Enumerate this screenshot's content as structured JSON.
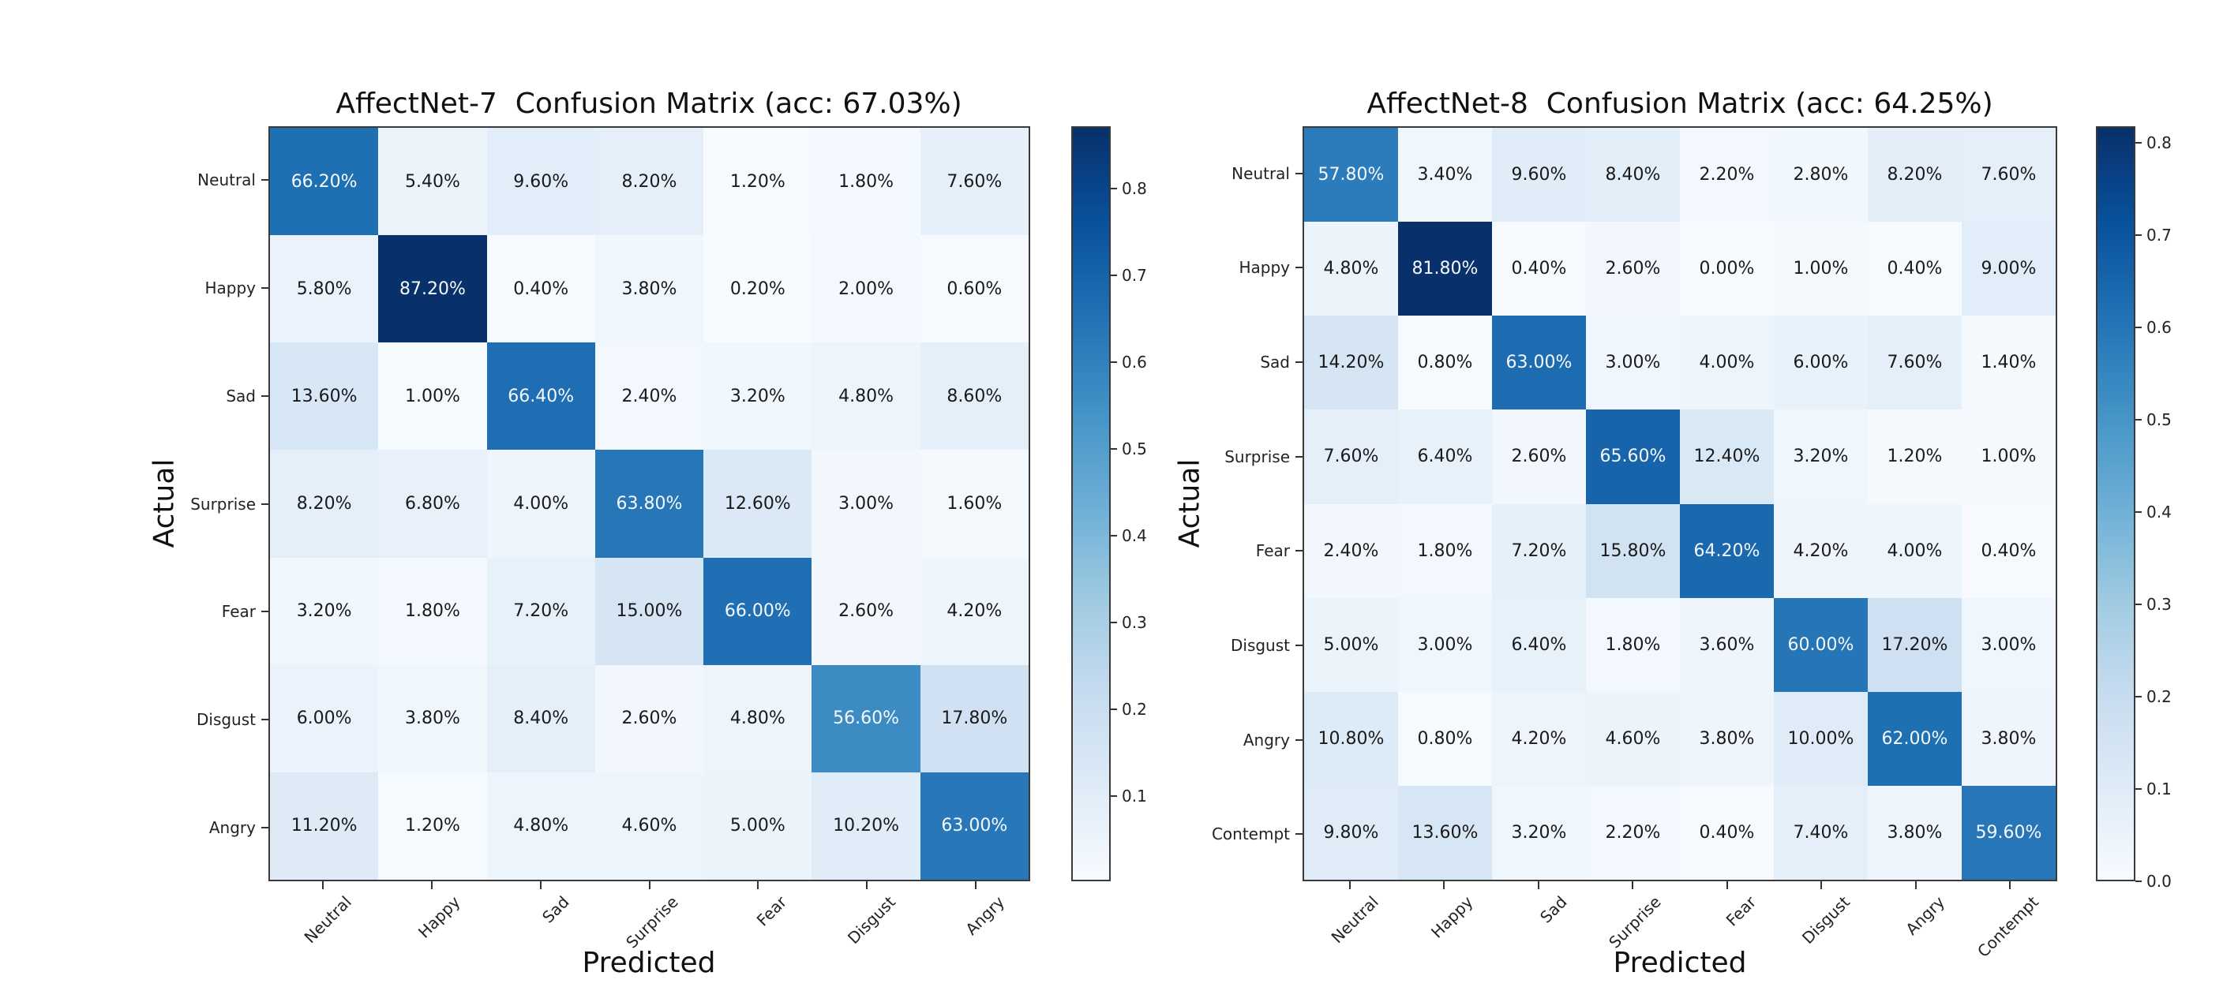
{
  "colors": {
    "background": "#ffffff",
    "text": "#111111",
    "spine": "#3a3a3a",
    "colormap": "Blues",
    "colormap_stops": [
      "#f7fbff",
      "#deebf7",
      "#c6dbef",
      "#9ecae1",
      "#6baed6",
      "#4292c6",
      "#2171b5",
      "#08519c",
      "#08306b"
    ],
    "cell_text_dark": "#1a1a1a",
    "cell_text_light": "#f5f9fd"
  },
  "chart_data": [
    {
      "type": "heatmap",
      "title": "AffectNet-7  Confusion Matrix (acc: 67.03%)",
      "accuracy_percent": 67.03,
      "xlabel": "Predicted",
      "ylabel": "Actual",
      "classes": [
        "Neutral",
        "Happy",
        "Sad",
        "Surprise",
        "Fear",
        "Disgust",
        "Angry"
      ],
      "values_percent": [
        [
          66.2,
          5.4,
          9.6,
          8.2,
          1.2,
          1.8,
          7.6
        ],
        [
          5.8,
          87.2,
          0.4,
          3.8,
          0.2,
          2.0,
          0.6
        ],
        [
          13.6,
          1.0,
          66.4,
          2.4,
          3.2,
          4.8,
          8.6
        ],
        [
          8.2,
          6.8,
          4.0,
          63.8,
          12.6,
          3.0,
          1.6
        ],
        [
          3.2,
          1.8,
          7.2,
          15.0,
          66.0,
          2.6,
          4.2
        ],
        [
          6.0,
          3.8,
          8.4,
          2.6,
          4.8,
          56.6,
          17.8
        ],
        [
          11.2,
          1.2,
          4.8,
          4.6,
          5.0,
          10.2,
          63.0
        ]
      ],
      "cell_suffix": "%",
      "colorbar_ticks": [
        0.1,
        0.2,
        0.3,
        0.4,
        0.5,
        0.6,
        0.7,
        0.8
      ],
      "legend_position": "right-colorbar",
      "grid": false
    },
    {
      "type": "heatmap",
      "title": "AffectNet-8  Confusion Matrix (acc: 64.25%)",
      "accuracy_percent": 64.25,
      "xlabel": "Predicted",
      "ylabel": "Actual",
      "classes": [
        "Neutral",
        "Happy",
        "Sad",
        "Surprise",
        "Fear",
        "Disgust",
        "Angry",
        "Contempt"
      ],
      "values_percent": [
        [
          57.8,
          3.4,
          9.6,
          8.4,
          2.2,
          2.8,
          8.2,
          7.6
        ],
        [
          4.8,
          81.8,
          0.4,
          2.6,
          0.0,
          1.0,
          0.4,
          9.0
        ],
        [
          14.2,
          0.8,
          63.0,
          3.0,
          4.0,
          6.0,
          7.6,
          1.4
        ],
        [
          7.6,
          6.4,
          2.6,
          65.6,
          12.4,
          3.2,
          1.2,
          1.0
        ],
        [
          2.4,
          1.8,
          7.2,
          15.8,
          64.2,
          4.2,
          4.0,
          0.4
        ],
        [
          5.0,
          3.0,
          6.4,
          1.8,
          3.6,
          60.0,
          17.2,
          3.0
        ],
        [
          10.8,
          0.8,
          4.2,
          4.6,
          3.8,
          10.0,
          62.0,
          3.8
        ],
        [
          9.8,
          13.6,
          3.2,
          2.2,
          0.4,
          7.4,
          3.8,
          59.6
        ]
      ],
      "cell_suffix": "%",
      "colorbar_ticks": [
        0.0,
        0.1,
        0.2,
        0.3,
        0.4,
        0.5,
        0.6,
        0.7,
        0.8
      ],
      "legend_position": "right-colorbar",
      "grid": false
    }
  ]
}
